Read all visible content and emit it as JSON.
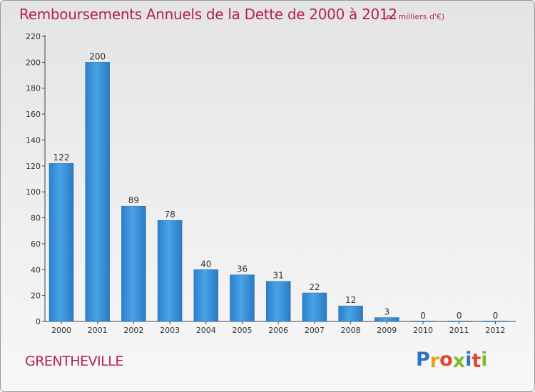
{
  "chart_data": {
    "type": "bar",
    "title": "Remboursements Annuels de la Dette de 2000 à 2012",
    "subtitle": "(en milliers d'€)",
    "categories": [
      "2000",
      "2001",
      "2002",
      "2003",
      "2004",
      "2005",
      "2006",
      "2007",
      "2008",
      "2009",
      "2010",
      "2011",
      "2012"
    ],
    "values": [
      122,
      200,
      89,
      78,
      40,
      36,
      31,
      22,
      12,
      3,
      0,
      0,
      0
    ],
    "ylim": [
      0,
      220
    ],
    "yticks": [
      0,
      20,
      40,
      60,
      80,
      100,
      120,
      140,
      160,
      180,
      200,
      220
    ],
    "xlabel": "",
    "ylabel": "",
    "bar_color": "#3a8fd6",
    "grid": false
  },
  "footer": {
    "commune": "GRENTHEVILLE",
    "logo_text": "Proxiti",
    "logo_colors": [
      "#2a73c9",
      "#e8a21a",
      "#e0462c",
      "#7cbb2f",
      "#2a73c9",
      "#e0462c",
      "#7cbb2f"
    ]
  },
  "colors": {
    "title": "#b5224f",
    "axis": "#333333"
  }
}
